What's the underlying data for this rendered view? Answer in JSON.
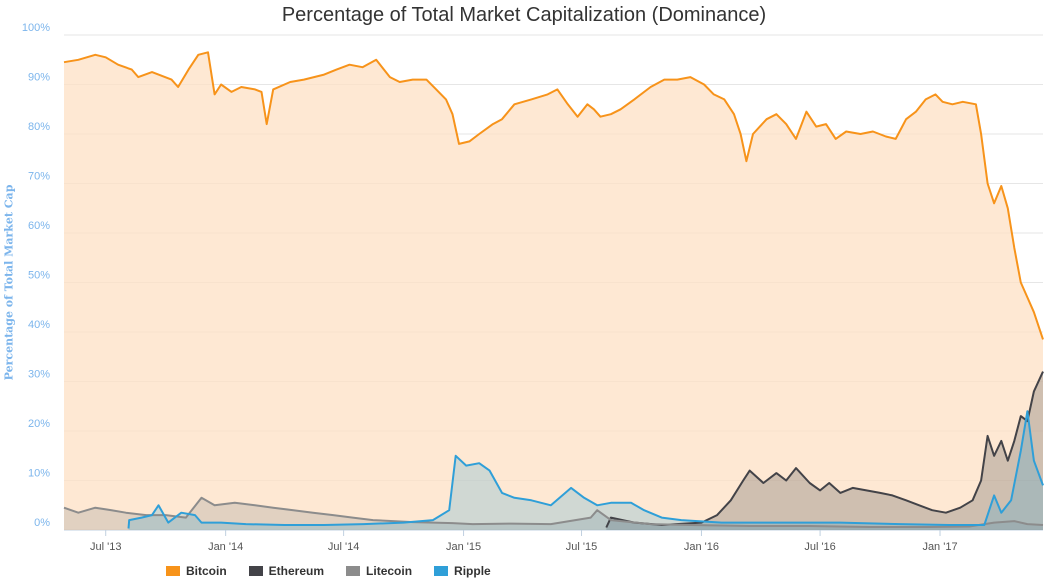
{
  "chart_data": {
    "type": "area",
    "title": "Percentage of Total Market Capitalization (Dominance)",
    "ylabel": "Percentage of Total Market Cap",
    "xlabel": "",
    "ylim": [
      0,
      100
    ],
    "xlim": [
      "2013-04-28",
      "2017-06-08"
    ],
    "y_ticks": [
      {
        "value": 0,
        "label": "0%"
      },
      {
        "value": 10,
        "label": "10%"
      },
      {
        "value": 20,
        "label": "20%"
      },
      {
        "value": 30,
        "label": "30%"
      },
      {
        "value": 40,
        "label": "40%"
      },
      {
        "value": 50,
        "label": "50%"
      },
      {
        "value": 60,
        "label": "60%"
      },
      {
        "value": 70,
        "label": "70%"
      },
      {
        "value": 80,
        "label": "80%"
      },
      {
        "value": 90,
        "label": "90%"
      },
      {
        "value": 100,
        "label": "100%"
      }
    ],
    "x_ticks": [
      {
        "date": "2013-07-01",
        "label": "Jul '13"
      },
      {
        "date": "2014-01-01",
        "label": "Jan '14"
      },
      {
        "date": "2014-07-01",
        "label": "Jul '14"
      },
      {
        "date": "2015-01-01",
        "label": "Jan '15"
      },
      {
        "date": "2015-07-01",
        "label": "Jul '15"
      },
      {
        "date": "2016-01-01",
        "label": "Jan '16"
      },
      {
        "date": "2016-07-01",
        "label": "Jul '16"
      },
      {
        "date": "2017-01-01",
        "label": "Jan '17"
      }
    ],
    "grid": true,
    "legend_position": "bottom",
    "series": [
      {
        "name": "Bitcoin",
        "color": "#f7931a",
        "points": [
          [
            "2013-04-28",
            94.5
          ],
          [
            "2013-05-20",
            95.0
          ],
          [
            "2013-06-15",
            96.0
          ],
          [
            "2013-07-01",
            95.5
          ],
          [
            "2013-07-20",
            94.0
          ],
          [
            "2013-08-10",
            93.0
          ],
          [
            "2013-08-20",
            91.5
          ],
          [
            "2013-09-10",
            92.5
          ],
          [
            "2013-10-10",
            91.0
          ],
          [
            "2013-10-20",
            89.5
          ],
          [
            "2013-11-05",
            93.0
          ],
          [
            "2013-11-20",
            96.0
          ],
          [
            "2013-12-05",
            96.5
          ],
          [
            "2013-12-15",
            88.0
          ],
          [
            "2013-12-25",
            90.0
          ],
          [
            "2014-01-10",
            88.5
          ],
          [
            "2014-01-25",
            89.5
          ],
          [
            "2014-02-15",
            89.0
          ],
          [
            "2014-02-25",
            88.5
          ],
          [
            "2014-03-05",
            82.0
          ],
          [
            "2014-03-15",
            89.0
          ],
          [
            "2014-04-10",
            90.5
          ],
          [
            "2014-05-01",
            91.0
          ],
          [
            "2014-06-01",
            92.0
          ],
          [
            "2014-06-20",
            93.0
          ],
          [
            "2014-07-10",
            94.0
          ],
          [
            "2014-07-30",
            93.5
          ],
          [
            "2014-08-20",
            95.0
          ],
          [
            "2014-09-10",
            91.5
          ],
          [
            "2014-09-25",
            90.5
          ],
          [
            "2014-10-15",
            91.0
          ],
          [
            "2014-11-05",
            91.0
          ],
          [
            "2014-11-20",
            89.0
          ],
          [
            "2014-12-05",
            87.0
          ],
          [
            "2014-12-15",
            84.0
          ],
          [
            "2014-12-25",
            78.0
          ],
          [
            "2015-01-10",
            78.5
          ],
          [
            "2015-01-25",
            80.0
          ],
          [
            "2015-02-15",
            82.0
          ],
          [
            "2015-03-01",
            83.0
          ],
          [
            "2015-03-20",
            86.0
          ],
          [
            "2015-04-15",
            87.0
          ],
          [
            "2015-05-10",
            88.0
          ],
          [
            "2015-05-25",
            89.0
          ],
          [
            "2015-06-10",
            86.0
          ],
          [
            "2015-06-25",
            83.5
          ],
          [
            "2015-07-10",
            86.0
          ],
          [
            "2015-07-20",
            85.0
          ],
          [
            "2015-07-30",
            83.5
          ],
          [
            "2015-08-15",
            84.0
          ],
          [
            "2015-08-30",
            85.0
          ],
          [
            "2015-09-20",
            87.0
          ],
          [
            "2015-10-15",
            89.5
          ],
          [
            "2015-11-05",
            91.0
          ],
          [
            "2015-11-25",
            91.0
          ],
          [
            "2015-12-15",
            91.5
          ],
          [
            "2016-01-05",
            90.0
          ],
          [
            "2016-01-20",
            88.0
          ],
          [
            "2016-02-05",
            87.0
          ],
          [
            "2016-02-20",
            84.0
          ],
          [
            "2016-03-01",
            80.0
          ],
          [
            "2016-03-10",
            74.5
          ],
          [
            "2016-03-20",
            80.0
          ],
          [
            "2016-04-10",
            83.0
          ],
          [
            "2016-04-25",
            84.0
          ],
          [
            "2016-05-10",
            82.0
          ],
          [
            "2016-05-25",
            79.0
          ],
          [
            "2016-06-10",
            84.5
          ],
          [
            "2016-06-25",
            81.5
          ],
          [
            "2016-07-10",
            82.0
          ],
          [
            "2016-07-25",
            79.0
          ],
          [
            "2016-08-10",
            80.5
          ],
          [
            "2016-09-01",
            80.0
          ],
          [
            "2016-09-20",
            80.5
          ],
          [
            "2016-10-10",
            79.5
          ],
          [
            "2016-10-25",
            79.0
          ],
          [
            "2016-11-10",
            83.0
          ],
          [
            "2016-11-25",
            84.5
          ],
          [
            "2016-12-10",
            87.0
          ],
          [
            "2016-12-25",
            88.0
          ],
          [
            "2017-01-05",
            86.5
          ],
          [
            "2017-01-20",
            86.0
          ],
          [
            "2017-02-05",
            86.5
          ],
          [
            "2017-02-25",
            86.0
          ],
          [
            "2017-03-05",
            80.0
          ],
          [
            "2017-03-15",
            70.0
          ],
          [
            "2017-03-25",
            66.0
          ],
          [
            "2017-04-05",
            69.5
          ],
          [
            "2017-04-15",
            65.0
          ],
          [
            "2017-04-25",
            57.0
          ],
          [
            "2017-05-05",
            50.0
          ],
          [
            "2017-05-15",
            47.0
          ],
          [
            "2017-05-25",
            44.0
          ],
          [
            "2017-06-08",
            38.5
          ]
        ]
      },
      {
        "name": "Ethereum",
        "color": "#434348",
        "points": [
          [
            "2015-08-08",
            0.5
          ],
          [
            "2015-08-15",
            2.5
          ],
          [
            "2015-09-20",
            1.5
          ],
          [
            "2015-11-01",
            1.0
          ],
          [
            "2016-01-01",
            1.5
          ],
          [
            "2016-01-25",
            3.0
          ],
          [
            "2016-02-15",
            6.0
          ],
          [
            "2016-03-05",
            10.0
          ],
          [
            "2016-03-15",
            12.0
          ],
          [
            "2016-04-05",
            9.5
          ],
          [
            "2016-04-25",
            11.5
          ],
          [
            "2016-05-10",
            10.0
          ],
          [
            "2016-05-25",
            12.5
          ],
          [
            "2016-06-15",
            9.5
          ],
          [
            "2016-07-01",
            8.0
          ],
          [
            "2016-07-15",
            9.5
          ],
          [
            "2016-08-01",
            7.5
          ],
          [
            "2016-08-20",
            8.5
          ],
          [
            "2016-09-10",
            8.0
          ],
          [
            "2016-10-01",
            7.5
          ],
          [
            "2016-10-20",
            7.0
          ],
          [
            "2016-11-10",
            6.0
          ],
          [
            "2016-11-30",
            5.0
          ],
          [
            "2016-12-20",
            4.0
          ],
          [
            "2017-01-10",
            3.5
          ],
          [
            "2017-02-01",
            4.5
          ],
          [
            "2017-02-20",
            6.0
          ],
          [
            "2017-03-05",
            10.0
          ],
          [
            "2017-03-15",
            19.0
          ],
          [
            "2017-03-25",
            15.0
          ],
          [
            "2017-04-05",
            18.0
          ],
          [
            "2017-04-15",
            14.0
          ],
          [
            "2017-04-25",
            18.0
          ],
          [
            "2017-05-05",
            23.0
          ],
          [
            "2017-05-15",
            22.0
          ],
          [
            "2017-05-25",
            28.0
          ],
          [
            "2017-06-08",
            32.0
          ]
        ]
      },
      {
        "name": "Litecoin",
        "color": "#8c8c8c",
        "points": [
          [
            "2013-04-28",
            4.5
          ],
          [
            "2013-05-20",
            3.5
          ],
          [
            "2013-06-15",
            4.5
          ],
          [
            "2013-07-10",
            4.0
          ],
          [
            "2013-08-01",
            3.5
          ],
          [
            "2013-09-01",
            3.0
          ],
          [
            "2013-10-01",
            3.0
          ],
          [
            "2013-11-01",
            2.5
          ],
          [
            "2013-11-25",
            6.5
          ],
          [
            "2013-12-15",
            5.0
          ],
          [
            "2014-01-15",
            5.5
          ],
          [
            "2014-02-15",
            5.0
          ],
          [
            "2014-03-15",
            4.5
          ],
          [
            "2014-04-15",
            4.0
          ],
          [
            "2014-05-15",
            3.5
          ],
          [
            "2014-06-15",
            3.0
          ],
          [
            "2014-07-15",
            2.5
          ],
          [
            "2014-08-15",
            2.0
          ],
          [
            "2014-09-15",
            1.8
          ],
          [
            "2014-10-15",
            1.6
          ],
          [
            "2014-11-15",
            1.5
          ],
          [
            "2014-12-15",
            1.4
          ],
          [
            "2015-01-15",
            1.2
          ],
          [
            "2015-03-15",
            1.3
          ],
          [
            "2015-05-15",
            1.2
          ],
          [
            "2015-07-15",
            2.5
          ],
          [
            "2015-07-25",
            4.0
          ],
          [
            "2015-08-15",
            2.0
          ],
          [
            "2015-10-15",
            1.2
          ],
          [
            "2015-12-15",
            1.0
          ],
          [
            "2016-03-15",
            0.8
          ],
          [
            "2016-06-15",
            0.8
          ],
          [
            "2016-09-15",
            0.6
          ],
          [
            "2016-12-15",
            0.6
          ],
          [
            "2017-02-15",
            0.7
          ],
          [
            "2017-03-25",
            1.5
          ],
          [
            "2017-04-25",
            1.8
          ],
          [
            "2017-05-15",
            1.2
          ],
          [
            "2017-06-08",
            1.0
          ]
        ]
      },
      {
        "name": "Ripple",
        "color": "#2f9fd8",
        "points": [
          [
            "2013-08-05",
            0.3
          ],
          [
            "2013-08-06",
            2.0
          ],
          [
            "2013-08-25",
            2.5
          ],
          [
            "2013-09-10",
            3.0
          ],
          [
            "2013-09-20",
            5.0
          ],
          [
            "2013-10-05",
            1.5
          ],
          [
            "2013-10-25",
            3.5
          ],
          [
            "2013-11-15",
            3.0
          ],
          [
            "2013-11-25",
            1.5
          ],
          [
            "2013-12-25",
            1.5
          ],
          [
            "2014-02-01",
            1.2
          ],
          [
            "2014-04-01",
            1.0
          ],
          [
            "2014-06-01",
            1.0
          ],
          [
            "2014-08-01",
            1.2
          ],
          [
            "2014-10-01",
            1.5
          ],
          [
            "2014-11-15",
            2.0
          ],
          [
            "2014-12-10",
            4.0
          ],
          [
            "2014-12-20",
            15.0
          ],
          [
            "2015-01-05",
            13.0
          ],
          [
            "2015-01-25",
            13.5
          ],
          [
            "2015-02-10",
            12.0
          ],
          [
            "2015-03-01",
            7.5
          ],
          [
            "2015-03-20",
            6.5
          ],
          [
            "2015-04-15",
            6.0
          ],
          [
            "2015-05-15",
            5.0
          ],
          [
            "2015-06-15",
            8.5
          ],
          [
            "2015-07-05",
            6.5
          ],
          [
            "2015-07-25",
            5.0
          ],
          [
            "2015-08-15",
            5.5
          ],
          [
            "2015-09-15",
            5.5
          ],
          [
            "2015-10-05",
            4.0
          ],
          [
            "2015-11-01",
            2.5
          ],
          [
            "2015-12-01",
            2.0
          ],
          [
            "2016-02-01",
            1.5
          ],
          [
            "2016-05-01",
            1.5
          ],
          [
            "2016-08-01",
            1.5
          ],
          [
            "2016-11-01",
            1.2
          ],
          [
            "2017-01-15",
            1.0
          ],
          [
            "2017-03-10",
            1.0
          ],
          [
            "2017-03-25",
            7.0
          ],
          [
            "2017-04-05",
            3.5
          ],
          [
            "2017-04-20",
            6.0
          ],
          [
            "2017-05-05",
            16.0
          ],
          [
            "2017-05-15",
            24.0
          ],
          [
            "2017-05-25",
            14.0
          ],
          [
            "2017-06-08",
            9.0
          ]
        ]
      }
    ]
  }
}
